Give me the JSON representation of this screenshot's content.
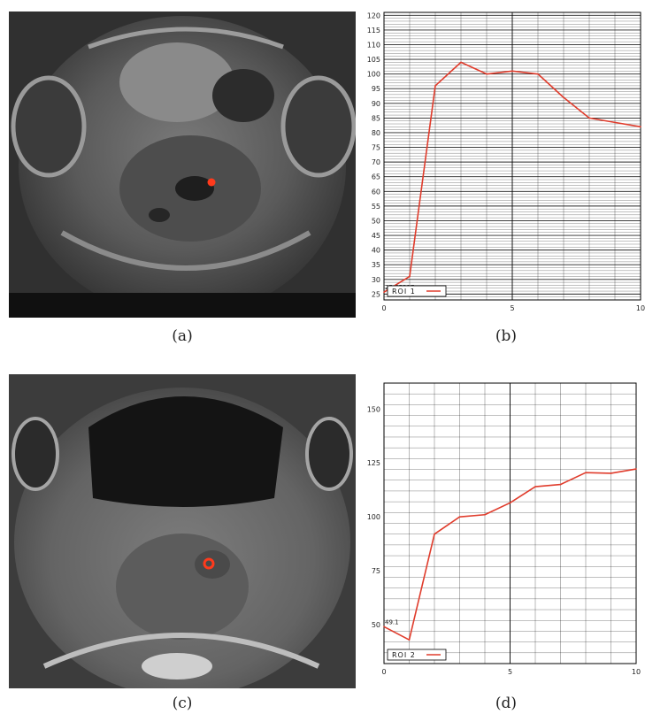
{
  "captions": {
    "a": "(a)",
    "b": "(b)",
    "c": "(c)",
    "d": "(d)"
  },
  "colors": {
    "curve": "#e03c2c",
    "marker": "#ff3a1c",
    "grid": "#000000",
    "scan_dark": "#1b1b1b"
  },
  "chart_data": [
    {
      "type": "line",
      "title": "",
      "xlabel": "",
      "ylabel": "",
      "xlim": [
        0,
        10
      ],
      "ylim": [
        23,
        121
      ],
      "x_ticks": [
        "0",
        "5",
        "10"
      ],
      "y_ticks": [
        "25",
        "30",
        "35",
        "40",
        "45",
        "50",
        "55",
        "60",
        "65",
        "70",
        "75",
        "80",
        "85",
        "90",
        "95",
        "100",
        "105",
        "110",
        "115",
        "120"
      ],
      "grid": true,
      "legend": "bottom-left",
      "first_value_label": "25.65217",
      "series": [
        {
          "name": "ROI 1",
          "x": [
            0,
            1,
            2,
            3,
            4,
            5,
            6,
            7,
            8,
            9,
            10
          ],
          "y": [
            25.65,
            31,
            96,
            104,
            100,
            101,
            100,
            92,
            85,
            83.5,
            82
          ]
        }
      ]
    },
    {
      "type": "line",
      "title": "",
      "xlabel": "",
      "ylabel": "",
      "xlim": [
        0,
        10
      ],
      "ylim": [
        32,
        162
      ],
      "x_ticks": [
        "0",
        "5",
        "10"
      ],
      "y_ticks": [
        "50",
        "75",
        "100",
        "125",
        "150"
      ],
      "grid": true,
      "legend": "bottom-left",
      "first_value_label": "49.1",
      "series": [
        {
          "name": "ROI 2",
          "x": [
            0,
            1,
            2,
            3,
            4,
            5,
            6,
            7,
            8,
            9,
            10
          ],
          "y": [
            49.1,
            43,
            92,
            100,
            101,
            106.5,
            114,
            115,
            120.5,
            120.2,
            122.2
          ]
        }
      ]
    }
  ]
}
